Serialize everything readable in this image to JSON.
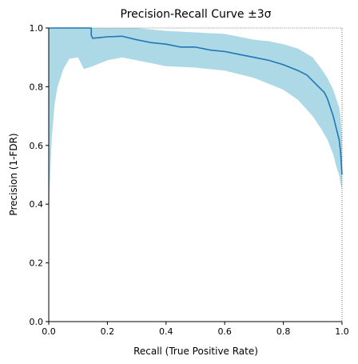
{
  "chart_data": {
    "type": "line",
    "title": "Precision-Recall Curve ±3σ",
    "xlabel": "Recall (True Positive Rate)",
    "ylabel": "Precision (1-FDR)",
    "xlim": [
      0,
      1
    ],
    "ylim": [
      0,
      1
    ],
    "xticks": [
      "0.0",
      "0.2",
      "0.4",
      "0.6",
      "0.8",
      "1.0"
    ],
    "yticks": [
      "0.0",
      "0.2",
      "0.4",
      "0.6",
      "0.8",
      "1.0"
    ],
    "grid": false,
    "legend": "none",
    "colors": {
      "line": "#1f77b4",
      "band": "#add8e6",
      "axis": "#000000",
      "reference": "#555555"
    },
    "series": [
      {
        "x": [
          0.0,
          0.145,
          0.145,
          0.15,
          0.2,
          0.25,
          0.3,
          0.35,
          0.4,
          0.45,
          0.5,
          0.55,
          0.6,
          0.65,
          0.7,
          0.75,
          0.8,
          0.85,
          0.88,
          0.9,
          0.92,
          0.94,
          0.95,
          0.96,
          0.97,
          0.98,
          0.99,
          0.995,
          1.0
        ],
        "y": [
          1.0,
          1.0,
          0.975,
          0.965,
          0.97,
          0.972,
          0.96,
          0.95,
          0.945,
          0.935,
          0.935,
          0.925,
          0.92,
          0.91,
          0.9,
          0.89,
          0.875,
          0.855,
          0.84,
          0.82,
          0.8,
          0.78,
          0.76,
          0.73,
          0.7,
          0.66,
          0.62,
          0.58,
          0.5
        ]
      }
    ],
    "band": {
      "x": [
        0.0,
        0.003,
        0.01,
        0.02,
        0.03,
        0.05,
        0.07,
        0.1,
        0.12,
        0.15,
        0.2,
        0.25,
        0.3,
        0.35,
        0.4,
        0.5,
        0.6,
        0.7,
        0.75,
        0.8,
        0.85,
        0.9,
        0.93,
        0.95,
        0.97,
        0.98,
        0.99,
        0.995,
        1.0
      ],
      "upper": [
        1.0,
        1.0,
        1.0,
        1.0,
        1.0,
        1.0,
        1.0,
        1.0,
        1.0,
        1.0,
        1.0,
        1.0,
        1.0,
        0.995,
        0.99,
        0.985,
        0.98,
        0.96,
        0.955,
        0.945,
        0.93,
        0.9,
        0.86,
        0.83,
        0.79,
        0.76,
        0.73,
        0.7,
        0.62
      ],
      "lower": [
        0.3,
        0.45,
        0.62,
        0.74,
        0.8,
        0.86,
        0.895,
        0.9,
        0.86,
        0.87,
        0.89,
        0.9,
        0.89,
        0.88,
        0.87,
        0.865,
        0.855,
        0.83,
        0.81,
        0.79,
        0.755,
        0.7,
        0.655,
        0.62,
        0.57,
        0.53,
        0.5,
        0.47,
        0.45
      ]
    }
  }
}
